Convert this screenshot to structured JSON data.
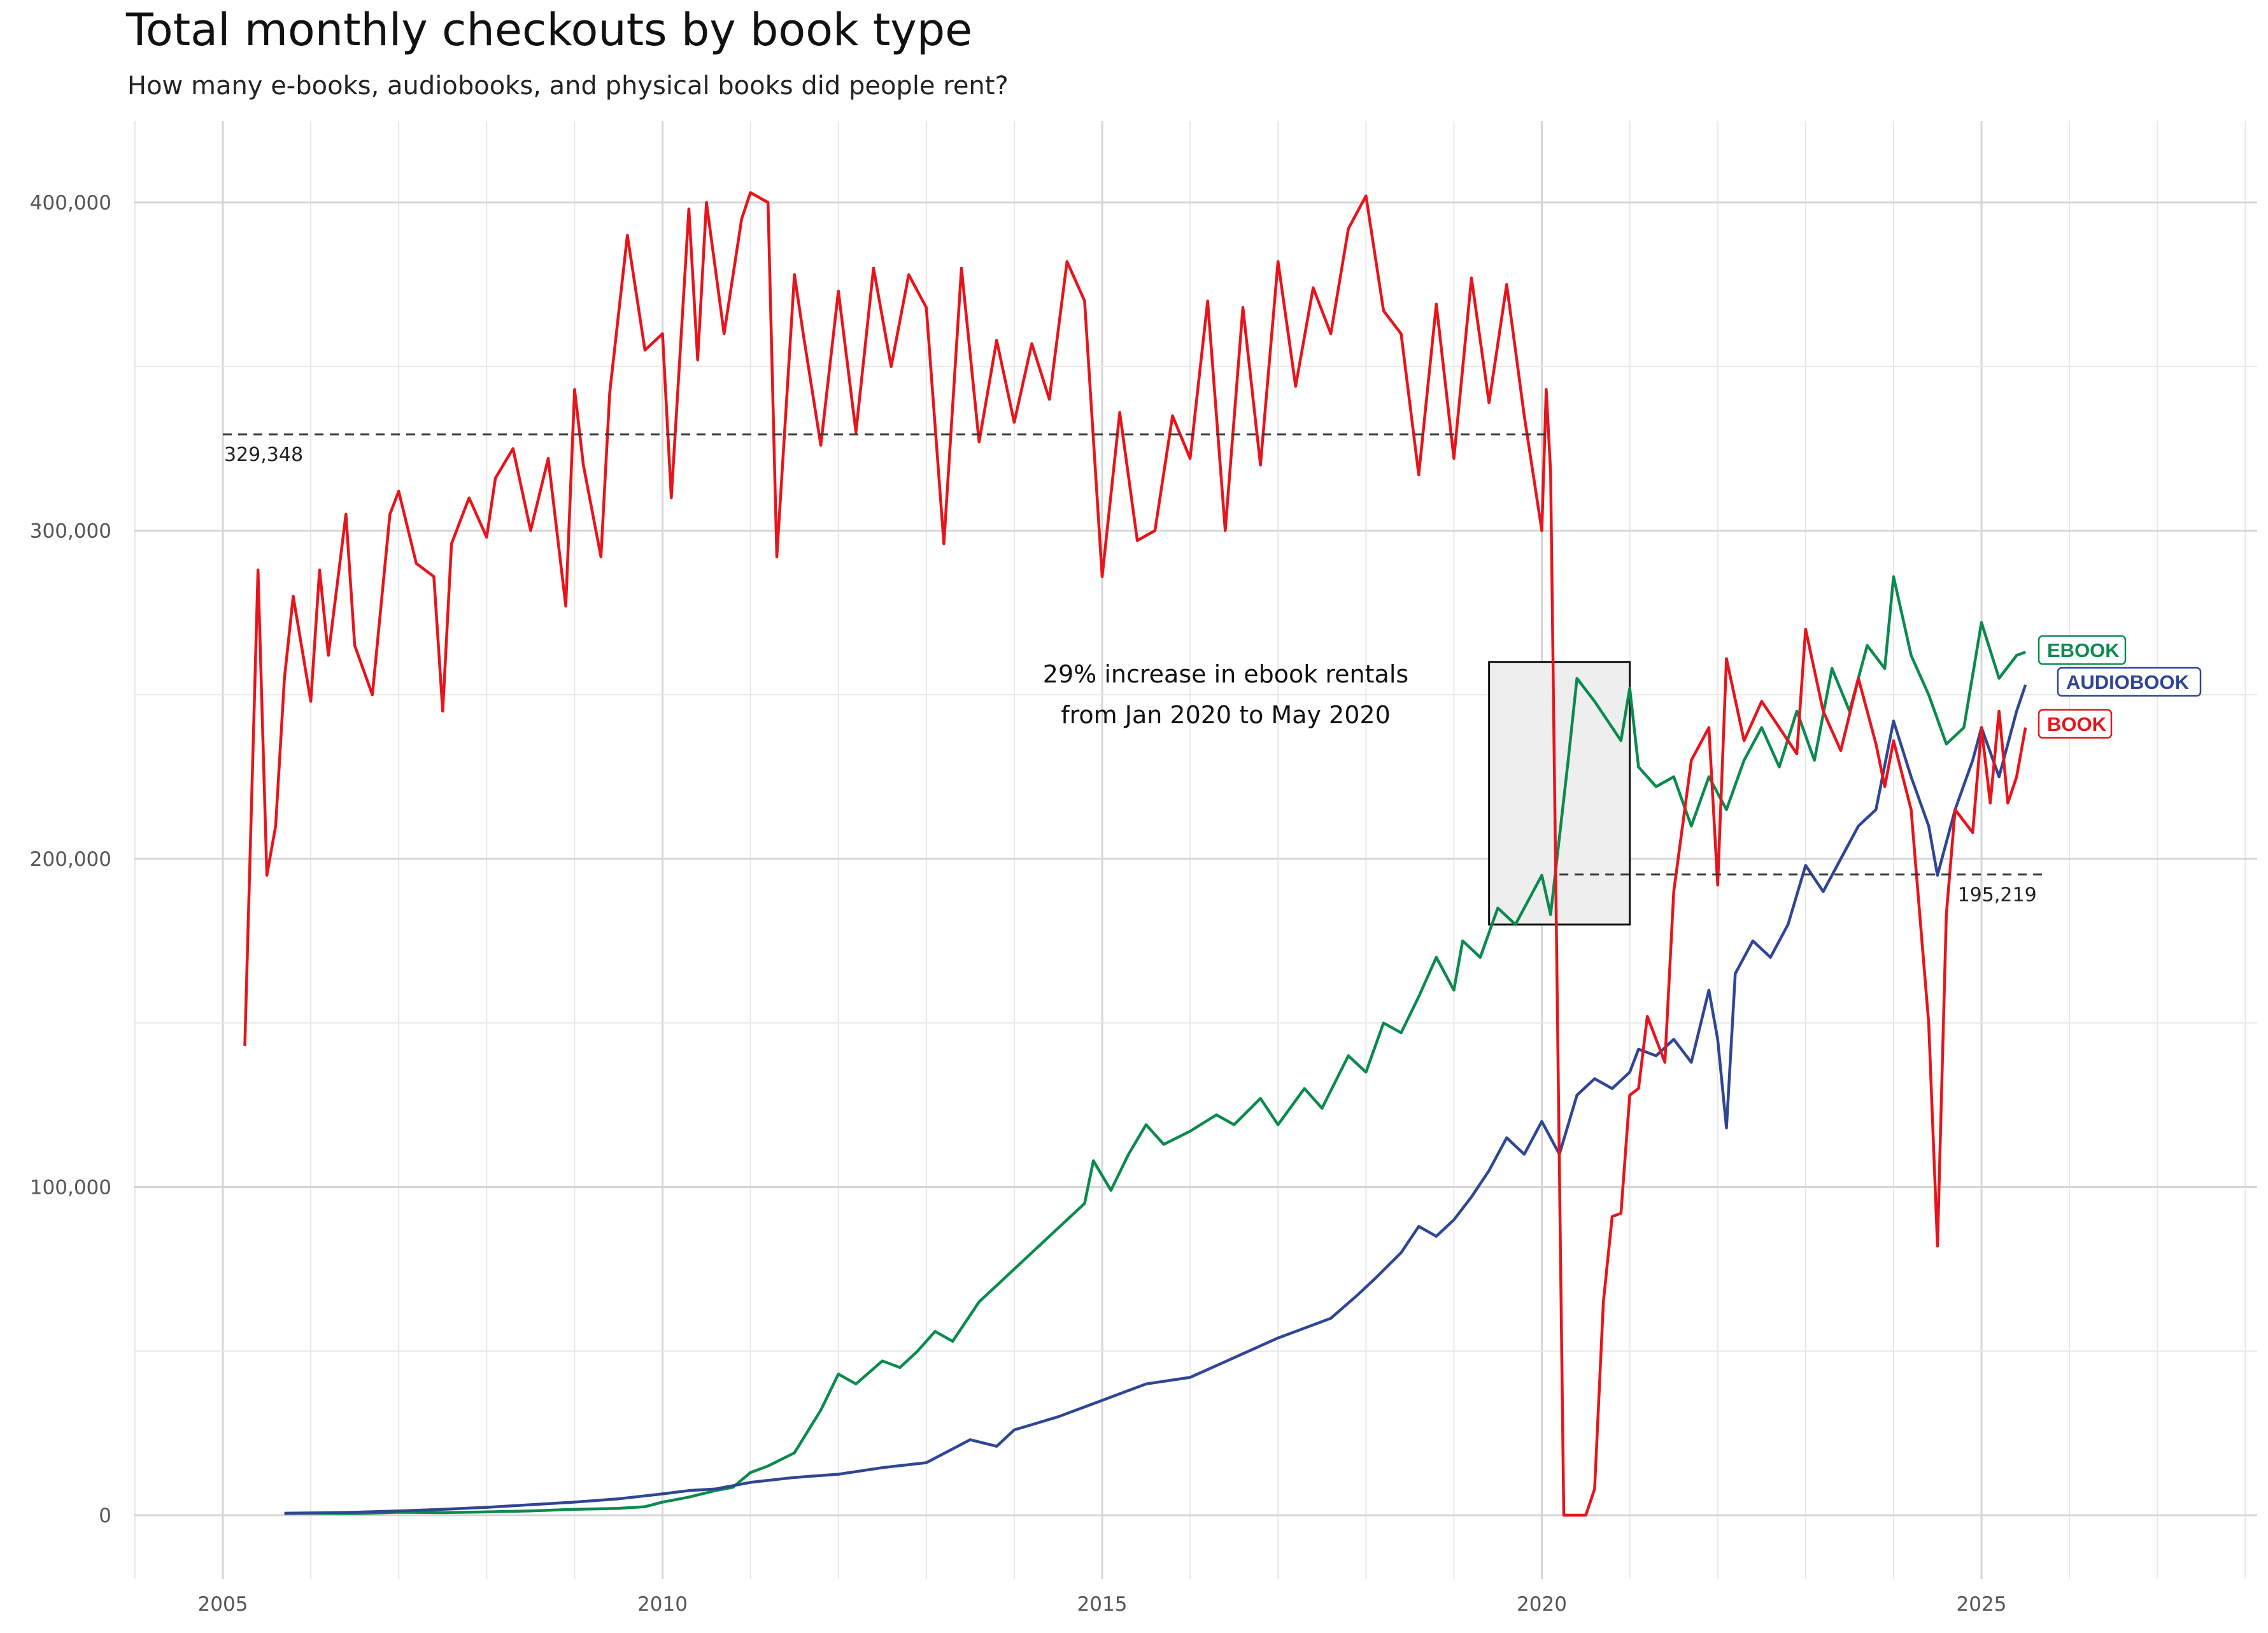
{
  "title": "Total monthly checkouts by book type",
  "subtitle": "How many e-books, audiobooks, and physical books did people rent?",
  "chart_data": {
    "type": "line",
    "title": "Total monthly checkouts by book type",
    "subtitle": "How many e-books, audiobooks, and physical books did people rent?",
    "xlabel": "",
    "ylabel": "",
    "xlim": [
      2004,
      2028.1
    ],
    "ylim": [
      -25000,
      420000
    ],
    "x_ticks": [
      2005,
      2010,
      2015,
      2020,
      2025
    ],
    "x_tick_labels": [
      "2005",
      "2010",
      "2015",
      "2020",
      "2025"
    ],
    "y_ticks": [
      0,
      100000,
      200000,
      300000,
      400000
    ],
    "y_tick_labels": [
      "0",
      "100,000",
      "200,000",
      "300,000",
      "400,000"
    ],
    "grid": true,
    "legend": "direct labels at right end of each line",
    "reference_lines": [
      {
        "value": 329348,
        "x_range": [
          2005.0,
          2020.1
        ],
        "label": "329,348",
        "style": "dashed"
      },
      {
        "value": 195219,
        "x_range": [
          2020.2,
          2025.7
        ],
        "label": "195,219",
        "style": "dashed"
      }
    ],
    "annotation": {
      "lines": [
        "29% increase in ebook rentals",
        "from Jan 2020 to May 2020"
      ],
      "highlight_box": {
        "x": [
          2019.4,
          2021.0
        ],
        "y": [
          180000,
          260000
        ]
      }
    },
    "series": [
      {
        "name": "EBOOK",
        "color": "#0b8a4e",
        "points": [
          [
            2005.7,
            500
          ],
          [
            2006.0,
            600
          ],
          [
            2006.5,
            500
          ],
          [
            2007.0,
            900
          ],
          [
            2007.5,
            800
          ],
          [
            2008.0,
            1000
          ],
          [
            2008.5,
            1300
          ],
          [
            2009.0,
            1800
          ],
          [
            2009.5,
            2100
          ],
          [
            2009.8,
            2600
          ],
          [
            2010.0,
            4000
          ],
          [
            2010.3,
            5500
          ],
          [
            2010.6,
            7500
          ],
          [
            2010.8,
            8500
          ],
          [
            2011.0,
            13000
          ],
          [
            2011.2,
            15000
          ],
          [
            2011.5,
            19000
          ],
          [
            2011.8,
            32000
          ],
          [
            2012.0,
            43000
          ],
          [
            2012.2,
            40000
          ],
          [
            2012.5,
            47000
          ],
          [
            2012.7,
            45000
          ],
          [
            2012.9,
            50000
          ],
          [
            2013.1,
            56000
          ],
          [
            2013.3,
            53000
          ],
          [
            2013.6,
            65000
          ],
          [
            2013.8,
            70000
          ],
          [
            2014.0,
            75000
          ],
          [
            2014.2,
            80000
          ],
          [
            2014.4,
            85000
          ],
          [
            2014.6,
            90000
          ],
          [
            2014.8,
            95000
          ],
          [
            2014.9,
            108000
          ],
          [
            2015.1,
            99000
          ],
          [
            2015.3,
            110000
          ],
          [
            2015.5,
            119000
          ],
          [
            2015.7,
            113000
          ],
          [
            2016.0,
            117000
          ],
          [
            2016.3,
            122000
          ],
          [
            2016.5,
            119000
          ],
          [
            2016.8,
            127000
          ],
          [
            2017.0,
            119000
          ],
          [
            2017.3,
            130000
          ],
          [
            2017.5,
            124000
          ],
          [
            2017.8,
            140000
          ],
          [
            2018.0,
            135000
          ],
          [
            2018.2,
            150000
          ],
          [
            2018.4,
            147000
          ],
          [
            2018.6,
            158000
          ],
          [
            2018.8,
            170000
          ],
          [
            2019.0,
            160000
          ],
          [
            2019.1,
            175000
          ],
          [
            2019.3,
            170000
          ],
          [
            2019.5,
            185000
          ],
          [
            2019.7,
            180000
          ],
          [
            2019.9,
            190000
          ],
          [
            2020.0,
            195000
          ],
          [
            2020.1,
            183000
          ],
          [
            2020.3,
            230000
          ],
          [
            2020.4,
            255000
          ],
          [
            2020.6,
            248000
          ],
          [
            2020.8,
            240000
          ],
          [
            2020.9,
            236000
          ],
          [
            2021.0,
            252000
          ],
          [
            2021.1,
            228000
          ],
          [
            2021.3,
            222000
          ],
          [
            2021.5,
            225000
          ],
          [
            2021.7,
            210000
          ],
          [
            2021.9,
            225000
          ],
          [
            2022.1,
            215000
          ],
          [
            2022.3,
            230000
          ],
          [
            2022.5,
            240000
          ],
          [
            2022.7,
            228000
          ],
          [
            2022.9,
            245000
          ],
          [
            2023.1,
            230000
          ],
          [
            2023.3,
            258000
          ],
          [
            2023.5,
            245000
          ],
          [
            2023.7,
            265000
          ],
          [
            2023.9,
            258000
          ],
          [
            2024.0,
            286000
          ],
          [
            2024.2,
            262000
          ],
          [
            2024.4,
            250000
          ],
          [
            2024.6,
            235000
          ],
          [
            2024.8,
            240000
          ],
          [
            2025.0,
            272000
          ],
          [
            2025.2,
            255000
          ],
          [
            2025.4,
            262000
          ],
          [
            2025.5,
            263000
          ]
        ]
      },
      {
        "name": "AUDIOBOOK",
        "color": "#2e4694",
        "points": [
          [
            2005.7,
            600
          ],
          [
            2006.0,
            700
          ],
          [
            2006.5,
            900
          ],
          [
            2007.0,
            1300
          ],
          [
            2007.5,
            1800
          ],
          [
            2008.0,
            2400
          ],
          [
            2008.5,
            3200
          ],
          [
            2009.0,
            4000
          ],
          [
            2009.5,
            5000
          ],
          [
            2010.0,
            6500
          ],
          [
            2010.3,
            7500
          ],
          [
            2010.6,
            8000
          ],
          [
            2011.0,
            10000
          ],
          [
            2011.5,
            11500
          ],
          [
            2012.0,
            12500
          ],
          [
            2012.5,
            14500
          ],
          [
            2013.0,
            16000
          ],
          [
            2013.5,
            23000
          ],
          [
            2013.8,
            21000
          ],
          [
            2014.0,
            26000
          ],
          [
            2014.5,
            30000
          ],
          [
            2015.0,
            35000
          ],
          [
            2015.5,
            40000
          ],
          [
            2016.0,
            42000
          ],
          [
            2016.5,
            48000
          ],
          [
            2017.0,
            54000
          ],
          [
            2017.3,
            57000
          ],
          [
            2017.6,
            60000
          ],
          [
            2017.9,
            67000
          ],
          [
            2018.1,
            72000
          ],
          [
            2018.4,
            80000
          ],
          [
            2018.6,
            88000
          ],
          [
            2018.8,
            85000
          ],
          [
            2019.0,
            90000
          ],
          [
            2019.2,
            97000
          ],
          [
            2019.4,
            105000
          ],
          [
            2019.6,
            115000
          ],
          [
            2019.8,
            110000
          ],
          [
            2020.0,
            120000
          ],
          [
            2020.2,
            110000
          ],
          [
            2020.4,
            128000
          ],
          [
            2020.6,
            133000
          ],
          [
            2020.8,
            130000
          ],
          [
            2021.0,
            135000
          ],
          [
            2021.1,
            142000
          ],
          [
            2021.3,
            140000
          ],
          [
            2021.5,
            145000
          ],
          [
            2021.7,
            138000
          ],
          [
            2021.9,
            160000
          ],
          [
            2022.0,
            145000
          ],
          [
            2022.1,
            118000
          ],
          [
            2022.2,
            165000
          ],
          [
            2022.4,
            175000
          ],
          [
            2022.6,
            170000
          ],
          [
            2022.8,
            180000
          ],
          [
            2023.0,
            198000
          ],
          [
            2023.2,
            190000
          ],
          [
            2023.4,
            200000
          ],
          [
            2023.6,
            210000
          ],
          [
            2023.8,
            215000
          ],
          [
            2024.0,
            242000
          ],
          [
            2024.2,
            225000
          ],
          [
            2024.4,
            210000
          ],
          [
            2024.5,
            195000
          ],
          [
            2024.7,
            215000
          ],
          [
            2024.9,
            230000
          ],
          [
            2025.0,
            240000
          ],
          [
            2025.2,
            225000
          ],
          [
            2025.4,
            245000
          ],
          [
            2025.5,
            253000
          ]
        ]
      },
      {
        "name": "BOOK",
        "color": "#e8141b",
        "points": [
          [
            2005.25,
            143000
          ],
          [
            2005.4,
            288000
          ],
          [
            2005.5,
            195000
          ],
          [
            2005.6,
            210000
          ],
          [
            2005.7,
            255000
          ],
          [
            2005.8,
            280000
          ],
          [
            2006.0,
            248000
          ],
          [
            2006.1,
            288000
          ],
          [
            2006.2,
            262000
          ],
          [
            2006.4,
            305000
          ],
          [
            2006.5,
            265000
          ],
          [
            2006.7,
            250000
          ],
          [
            2006.9,
            305000
          ],
          [
            2007.0,
            312000
          ],
          [
            2007.2,
            290000
          ],
          [
            2007.4,
            286000
          ],
          [
            2007.5,
            245000
          ],
          [
            2007.6,
            296000
          ],
          [
            2007.8,
            310000
          ],
          [
            2008.0,
            298000
          ],
          [
            2008.1,
            316000
          ],
          [
            2008.3,
            325000
          ],
          [
            2008.5,
            300000
          ],
          [
            2008.7,
            322000
          ],
          [
            2008.9,
            277000
          ],
          [
            2009.0,
            343000
          ],
          [
            2009.1,
            320000
          ],
          [
            2009.3,
            292000
          ],
          [
            2009.4,
            342000
          ],
          [
            2009.6,
            390000
          ],
          [
            2009.8,
            355000
          ],
          [
            2010.0,
            360000
          ],
          [
            2010.1,
            310000
          ],
          [
            2010.3,
            398000
          ],
          [
            2010.4,
            352000
          ],
          [
            2010.5,
            400000
          ],
          [
            2010.7,
            360000
          ],
          [
            2010.9,
            395000
          ],
          [
            2011.0,
            403000
          ],
          [
            2011.2,
            400000
          ],
          [
            2011.3,
            292000
          ],
          [
            2011.5,
            378000
          ],
          [
            2011.6,
            360000
          ],
          [
            2011.8,
            326000
          ],
          [
            2012.0,
            373000
          ],
          [
            2012.2,
            330000
          ],
          [
            2012.4,
            380000
          ],
          [
            2012.6,
            350000
          ],
          [
            2012.8,
            378000
          ],
          [
            2013.0,
            368000
          ],
          [
            2013.2,
            296000
          ],
          [
            2013.4,
            380000
          ],
          [
            2013.6,
            327000
          ],
          [
            2013.8,
            358000
          ],
          [
            2014.0,
            333000
          ],
          [
            2014.2,
            357000
          ],
          [
            2014.4,
            340000
          ],
          [
            2014.6,
            382000
          ],
          [
            2014.8,
            370000
          ],
          [
            2015.0,
            286000
          ],
          [
            2015.2,
            336000
          ],
          [
            2015.4,
            297000
          ],
          [
            2015.6,
            300000
          ],
          [
            2015.8,
            335000
          ],
          [
            2016.0,
            322000
          ],
          [
            2016.2,
            370000
          ],
          [
            2016.4,
            300000
          ],
          [
            2016.6,
            368000
          ],
          [
            2016.8,
            320000
          ],
          [
            2017.0,
            382000
          ],
          [
            2017.2,
            344000
          ],
          [
            2017.4,
            374000
          ],
          [
            2017.6,
            360000
          ],
          [
            2017.8,
            392000
          ],
          [
            2018.0,
            402000
          ],
          [
            2018.2,
            367000
          ],
          [
            2018.4,
            360000
          ],
          [
            2018.6,
            317000
          ],
          [
            2018.8,
            369000
          ],
          [
            2019.0,
            322000
          ],
          [
            2019.2,
            377000
          ],
          [
            2019.4,
            339000
          ],
          [
            2019.6,
            375000
          ],
          [
            2019.8,
            335000
          ],
          [
            2020.0,
            300000
          ],
          [
            2020.05,
            343000
          ],
          [
            2020.1,
            318000
          ],
          [
            2020.25,
            0
          ],
          [
            2020.5,
            0
          ],
          [
            2020.6,
            8000
          ],
          [
            2020.7,
            65000
          ],
          [
            2020.8,
            91000
          ],
          [
            2020.9,
            92000
          ],
          [
            2021.0,
            128000
          ],
          [
            2021.1,
            130000
          ],
          [
            2021.2,
            152000
          ],
          [
            2021.4,
            138000
          ],
          [
            2021.5,
            190000
          ],
          [
            2021.7,
            230000
          ],
          [
            2021.9,
            240000
          ],
          [
            2022.0,
            192000
          ],
          [
            2022.1,
            261000
          ],
          [
            2022.3,
            236000
          ],
          [
            2022.5,
            248000
          ],
          [
            2022.7,
            240000
          ],
          [
            2022.9,
            232000
          ],
          [
            2023.0,
            270000
          ],
          [
            2023.2,
            245000
          ],
          [
            2023.4,
            233000
          ],
          [
            2023.6,
            255000
          ],
          [
            2023.8,
            235000
          ],
          [
            2023.9,
            222000
          ],
          [
            2024.0,
            236000
          ],
          [
            2024.2,
            215000
          ],
          [
            2024.4,
            150000
          ],
          [
            2024.5,
            82000
          ],
          [
            2024.6,
            183000
          ],
          [
            2024.7,
            215000
          ],
          [
            2024.9,
            208000
          ],
          [
            2025.0,
            240000
          ],
          [
            2025.1,
            217000
          ],
          [
            2025.2,
            245000
          ],
          [
            2025.3,
            217000
          ],
          [
            2025.4,
            225000
          ],
          [
            2025.5,
            240000
          ]
        ]
      }
    ]
  }
}
